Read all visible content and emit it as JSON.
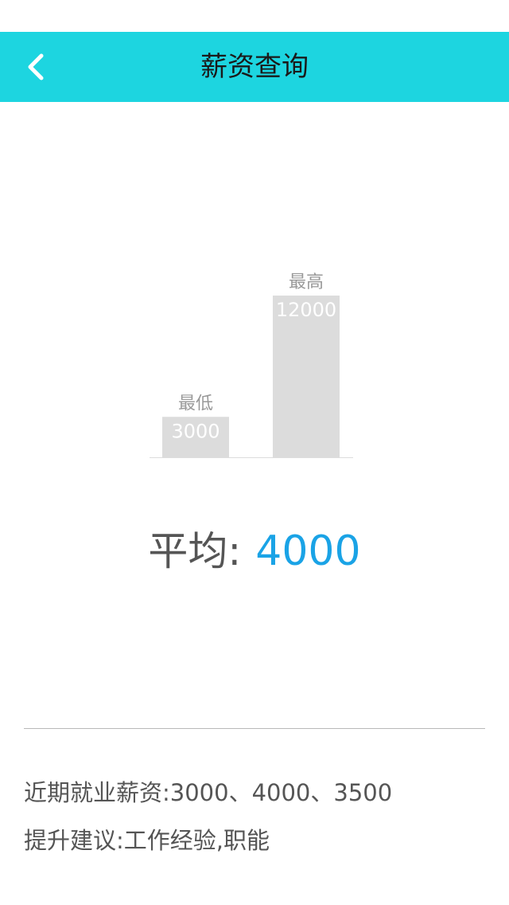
{
  "header": {
    "title": "薪资查询",
    "back_icon": "chevron-left-icon",
    "background_color": "#1dd5e0"
  },
  "chart_data": {
    "type": "bar",
    "categories": [
      "最低",
      "最高"
    ],
    "values": [
      3000,
      12000
    ],
    "value_labels": [
      "3000",
      "12000"
    ],
    "bar_color": "#dcdcdc",
    "ylim": [
      0,
      12000
    ]
  },
  "average": {
    "label": "平均:",
    "value": "4000",
    "value_color": "#1aa3e6"
  },
  "info": {
    "recent_label": "近期就业薪资:",
    "recent_values": "3000、4000、3500",
    "advice_label": "提升建议:",
    "advice_values": "工作经验,职能"
  }
}
